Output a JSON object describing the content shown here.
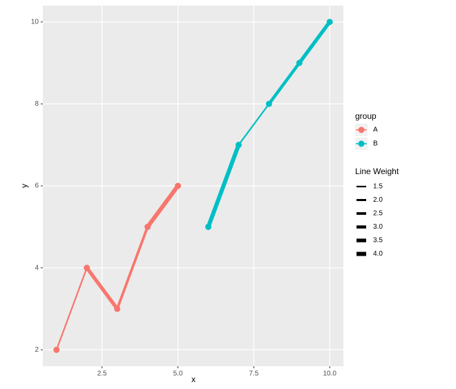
{
  "chart_data": {
    "type": "line",
    "x_label": "x",
    "y_label": "y",
    "xlim": [
      0.55,
      10.45
    ],
    "ylim": [
      1.6,
      10.4
    ],
    "xticks": [
      2.5,
      {
        "value": 5,
        "label": "5.0"
      },
      7.5,
      {
        "value": 10,
        "label": "10.0"
      }
    ],
    "yticks": [
      2,
      4,
      6,
      8,
      10
    ],
    "grid": true,
    "legend_title": "group",
    "series": [
      {
        "name": "A",
        "color": "#F8766D",
        "x": [
          1,
          2,
          3,
          4,
          5
        ],
        "values": [
          2,
          4,
          3,
          5,
          6
        ],
        "segment_weights": [
          1.5,
          3.5,
          2.5,
          4
        ]
      },
      {
        "name": "B",
        "color": "#00BFC4",
        "x": [
          6,
          7,
          8,
          9,
          10
        ],
        "values": [
          5,
          7,
          8,
          9,
          10
        ],
        "segment_weights": [
          4,
          1.5,
          3,
          3.5
        ]
      }
    ],
    "weight_legend_title": "Line Weight",
    "weight_legend": [
      1.5,
      {
        "value": 2,
        "label": "2.0"
      },
      2.5,
      {
        "value": 3,
        "label": "3.0"
      },
      3.5,
      {
        "value": 4,
        "label": "4.0"
      }
    ]
  }
}
